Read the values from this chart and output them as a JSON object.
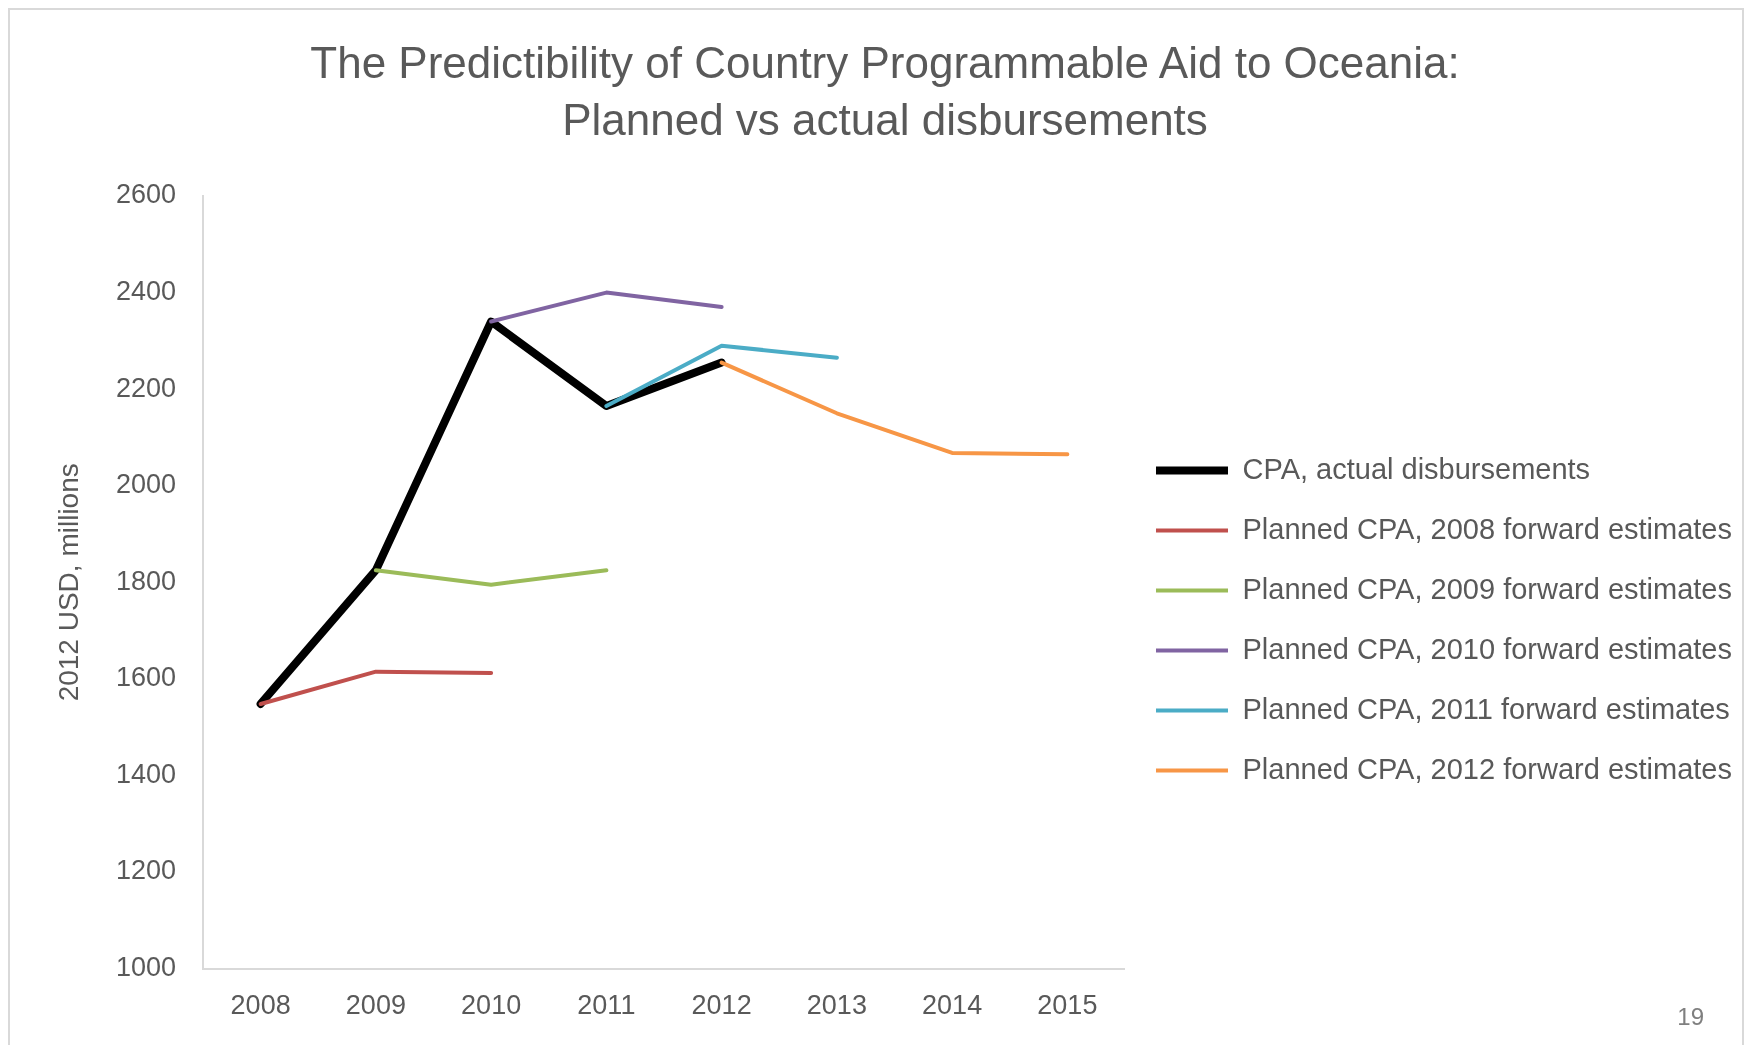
{
  "chart_data": {
    "type": "line",
    "title": "The Predictibility of Country Programmable Aid to Oceania: Planned vs actual disbursements",
    "ylabel": "2012 USD, millions",
    "categories": [
      "2008",
      "2009",
      "2010",
      "2011",
      "2012",
      "2013",
      "2014",
      "2015"
    ],
    "series": [
      {
        "name": "CPA, actual disbursements",
        "color": "#000000",
        "values": [
          1548,
          1825,
          2340,
          2165,
          2255,
          null,
          null,
          null
        ]
      },
      {
        "name": "Planned CPA, 2008 forward estimates",
        "color": "#c0504d",
        "values": [
          1548,
          1615,
          1612,
          null,
          null,
          null,
          null,
          null
        ]
      },
      {
        "name": "Planned CPA, 2009 forward estimates",
        "color": "#9bbb59",
        "values": [
          null,
          1825,
          1795,
          1825,
          null,
          null,
          null,
          null
        ]
      },
      {
        "name": "Planned CPA, 2010 forward estimates",
        "color": "#8064a2",
        "values": [
          null,
          null,
          2340,
          2400,
          2370,
          null,
          null,
          null
        ]
      },
      {
        "name": "Planned CPA, 2011 forward estimates",
        "color": "#4bacc6",
        "values": [
          null,
          null,
          null,
          2165,
          2290,
          2265,
          null,
          null
        ]
      },
      {
        "name": "Planned CPA, 2012 forward estimates",
        "color": "#f79646",
        "values": [
          null,
          null,
          null,
          null,
          2255,
          2150,
          2068,
          2065
        ]
      }
    ],
    "ylim": [
      1000,
      2600
    ],
    "yticks": [
      1000,
      1200,
      1400,
      1600,
      1800,
      2000,
      2200,
      2400,
      2600
    ],
    "grid": false,
    "legend": "right",
    "marker": "none",
    "line_style": "solid",
    "annotations": [
      "19"
    ]
  }
}
